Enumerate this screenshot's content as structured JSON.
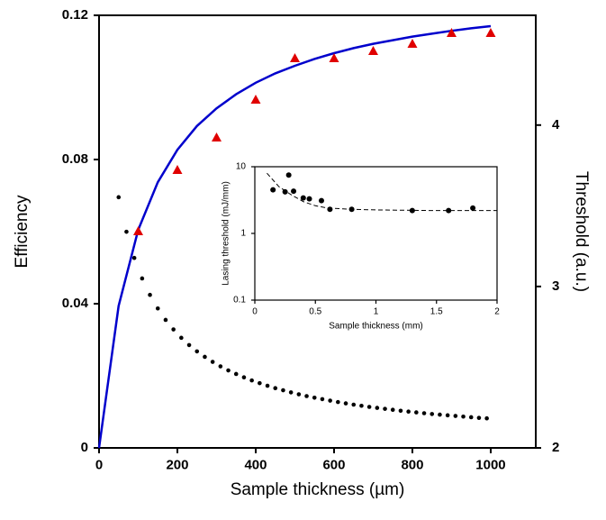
{
  "chart_data": [
    {
      "type": "line",
      "xlabel": "Sample thickness (µm)",
      "ylabel": "Efficiency",
      "y2label": "Threshold (a.u.)",
      "xlim": [
        0,
        1115
      ],
      "xticks": [
        0,
        200,
        400,
        600,
        800,
        1000
      ],
      "ylim": [
        0,
        0.12
      ],
      "yticks": [
        0,
        0.04,
        0.08,
        0.12
      ],
      "y2lim": [
        2,
        4.68
      ],
      "y2ticks": [
        2,
        3,
        4
      ],
      "series": [
        {
          "mode": "line",
          "color": "#0000cc",
          "x": [
            0,
            50,
            100,
            150,
            200,
            250,
            300,
            350,
            400,
            450,
            500,
            550,
            600,
            650,
            700,
            750,
            800,
            850,
            900,
            950,
            1000
          ],
          "values": [
            0,
            0.0394,
            0.0605,
            0.0737,
            0.0827,
            0.0893,
            0.0942,
            0.0981,
            0.1013,
            0.1039,
            0.106,
            0.1079,
            0.1095,
            0.1109,
            0.1121,
            0.1131,
            0.1141,
            0.1149,
            0.1157,
            0.1164,
            0.117
          ]
        },
        {
          "mode": "markers",
          "marker": "triangle",
          "color": "#e00000",
          "x": [
            100,
            200,
            300,
            400,
            500,
            600,
            700,
            800,
            900,
            1000
          ],
          "values": [
            0.06,
            0.077,
            0.086,
            0.0965,
            0.108,
            0.108,
            0.11,
            0.112,
            0.115,
            0.115
          ]
        },
        {
          "mode": "markers",
          "marker": "dot",
          "color": "#000000",
          "axis": "y2",
          "x": [
            50,
            70,
            90,
            110,
            130,
            150,
            170,
            190,
            210,
            230,
            250,
            270,
            290,
            310,
            330,
            350,
            370,
            390,
            410,
            430,
            450,
            470,
            490,
            510,
            530,
            550,
            570,
            590,
            610,
            630,
            650,
            670,
            690,
            710,
            730,
            750,
            770,
            790,
            810,
            830,
            850,
            870,
            890,
            910,
            930,
            950,
            970,
            990
          ],
          "values": [
            3.553,
            3.339,
            3.177,
            3.05,
            2.948,
            2.864,
            2.793,
            2.734,
            2.682,
            2.637,
            2.598,
            2.564,
            2.533,
            2.505,
            2.48,
            2.458,
            2.437,
            2.418,
            2.401,
            2.385,
            2.37,
            2.357,
            2.344,
            2.332,
            2.321,
            2.311,
            2.302,
            2.293,
            2.284,
            2.276,
            2.268,
            2.261,
            2.254,
            2.248,
            2.242,
            2.236,
            2.23,
            2.225,
            2.22,
            2.215,
            2.21,
            2.206,
            2.202,
            2.198,
            2.194,
            2.19,
            2.186,
            2.183
          ]
        }
      ]
    },
    {
      "type": "scatter",
      "xlabel": "Sample thickness (mm)",
      "ylabel": "Lasing threshold (mJ/mm)",
      "xlim": [
        0,
        2
      ],
      "xticks": [
        0,
        0.5,
        1,
        1.5,
        2
      ],
      "ylim": [
        0.1,
        10
      ],
      "yticks": [
        0.1,
        1,
        10
      ],
      "ylog": true,
      "series": [
        {
          "mode": "markers",
          "marker": "dot",
          "color": "#000000",
          "x": [
            0.15,
            0.25,
            0.28,
            0.32,
            0.4,
            0.45,
            0.55,
            0.62,
            0.8,
            1.3,
            1.6,
            1.8
          ],
          "values": [
            4.5,
            4.2,
            7.5,
            4.3,
            3.4,
            3.3,
            3.1,
            2.3,
            2.3,
            2.2,
            2.2,
            2.4
          ]
        },
        {
          "mode": "line",
          "dash": true,
          "color": "#000000",
          "x": [
            0.1,
            0.2,
            0.3,
            0.4,
            0.5,
            0.6,
            0.8,
            1,
            1.5,
            2
          ],
          "values": [
            8,
            5,
            3.8,
            3,
            2.6,
            2.4,
            2.3,
            2.25,
            2.2,
            2.2
          ]
        }
      ]
    }
  ]
}
